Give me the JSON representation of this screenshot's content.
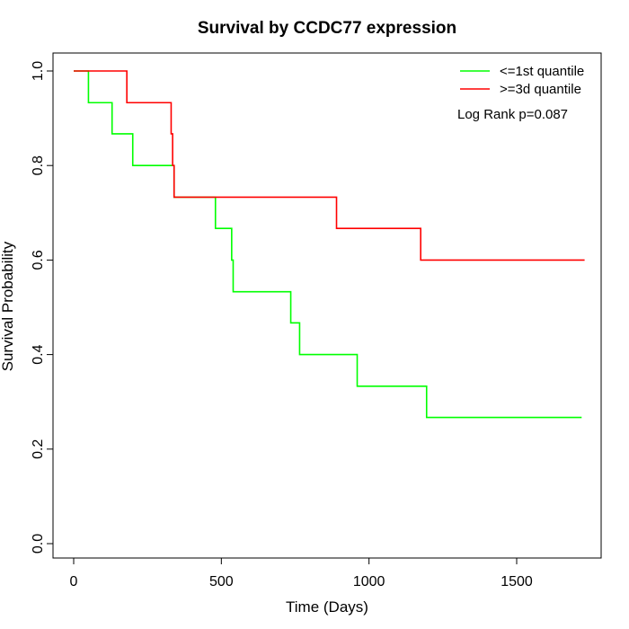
{
  "chart_data": {
    "type": "line",
    "subtype": "kaplan-meier",
    "title": "Survival by CCDC77 expression",
    "xlabel": "Time (Days)",
    "ylabel": "Survival Probability",
    "xlim": [
      0,
      1800
    ],
    "ylim": [
      0,
      1
    ],
    "xticks": [
      0,
      500,
      1000,
      1500
    ],
    "yticks": [
      0.0,
      0.2,
      0.4,
      0.6,
      0.8,
      1.0
    ],
    "xtick_labels": [
      "0",
      "500",
      "1000",
      "1500"
    ],
    "ytick_labels": [
      "0.0",
      "0.2",
      "0.4",
      "0.6",
      "0.8",
      "1.0"
    ],
    "grid": false,
    "legend_position": "top-right",
    "annotation": "Log Rank p=0.087",
    "series": [
      {
        "name": "<=1st quantile",
        "color": "#00ff00",
        "x": [
          0,
          50,
          130,
          200,
          340,
          480,
          535,
          540,
          735,
          765,
          960,
          1195,
          1720
        ],
        "y": [
          1.0,
          0.933,
          0.867,
          0.8,
          0.733,
          0.667,
          0.6,
          0.533,
          0.467,
          0.4,
          0.333,
          0.267,
          0.267
        ]
      },
      {
        "name": ">=3d quantile",
        "color": "#ff0000",
        "x": [
          0,
          180,
          330,
          335,
          340,
          890,
          1175,
          1730
        ],
        "y": [
          1.0,
          0.933,
          0.867,
          0.8,
          0.733,
          0.667,
          0.6,
          0.6
        ]
      }
    ]
  }
}
